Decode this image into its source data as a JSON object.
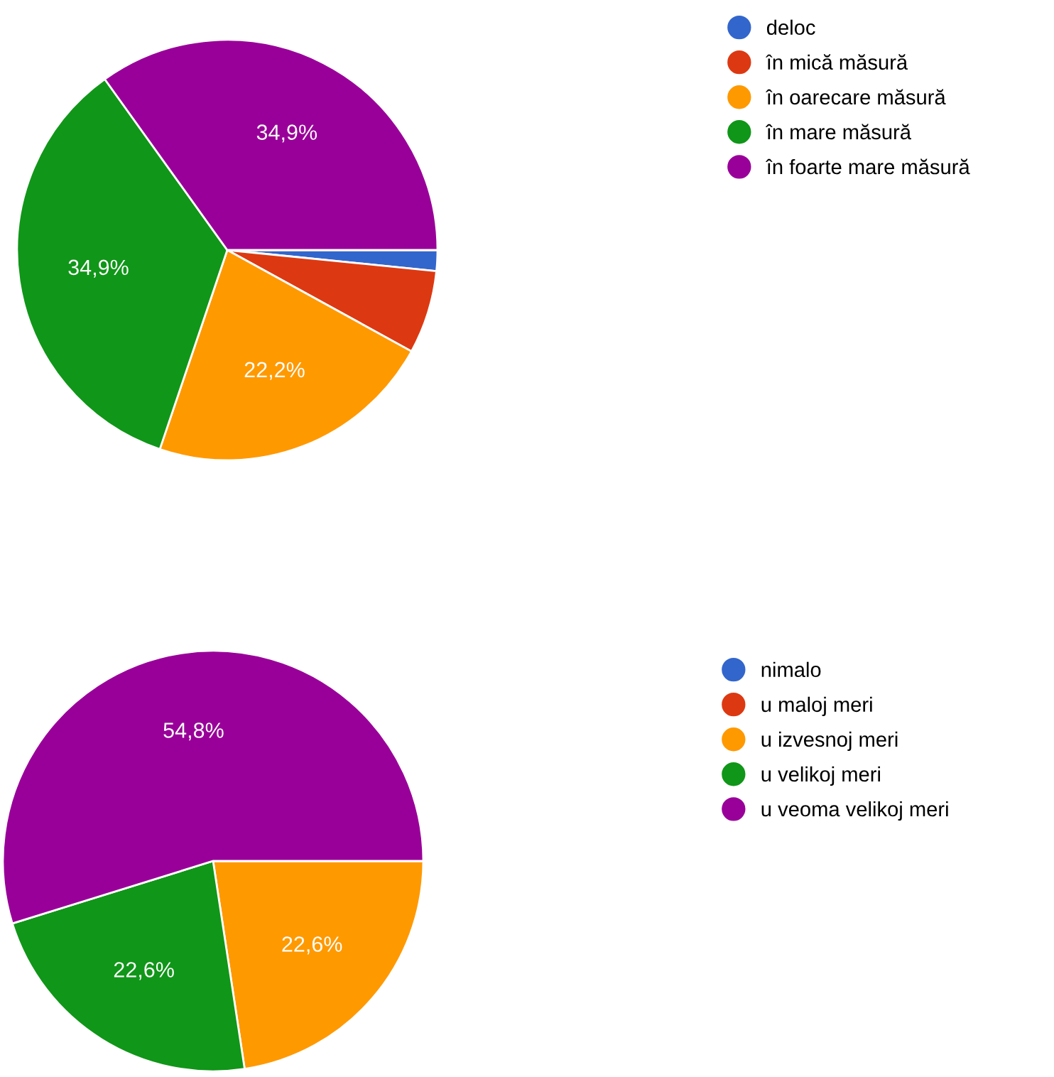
{
  "chart_data": [
    {
      "type": "pie",
      "categories": [
        "deloc",
        "în mică măsură",
        "în oarecare măsură",
        "în mare măsură",
        "în foarte mare măsură"
      ],
      "values": [
        1.6,
        6.4,
        22.2,
        34.9,
        34.9
      ],
      "value_labels": [
        null,
        null,
        "22,2%",
        "34,9%",
        "34,9%"
      ],
      "colors": [
        "#3366cc",
        "#dc3912",
        "#ff9900",
        "#109618",
        "#990099"
      ],
      "legend": "right"
    },
    {
      "type": "pie",
      "categories": [
        "nimalo",
        "u maloj meri",
        "u izvesnoj meri",
        "u velikoj meri",
        "u veoma velikoj meri"
      ],
      "values": [
        0,
        0,
        22.6,
        22.6,
        54.8
      ],
      "value_labels": [
        null,
        null,
        "22,6%",
        "22,6%",
        "54,8%"
      ],
      "colors": [
        "#3366cc",
        "#dc3912",
        "#ff9900",
        "#109618",
        "#990099"
      ],
      "legend": "right"
    }
  ]
}
